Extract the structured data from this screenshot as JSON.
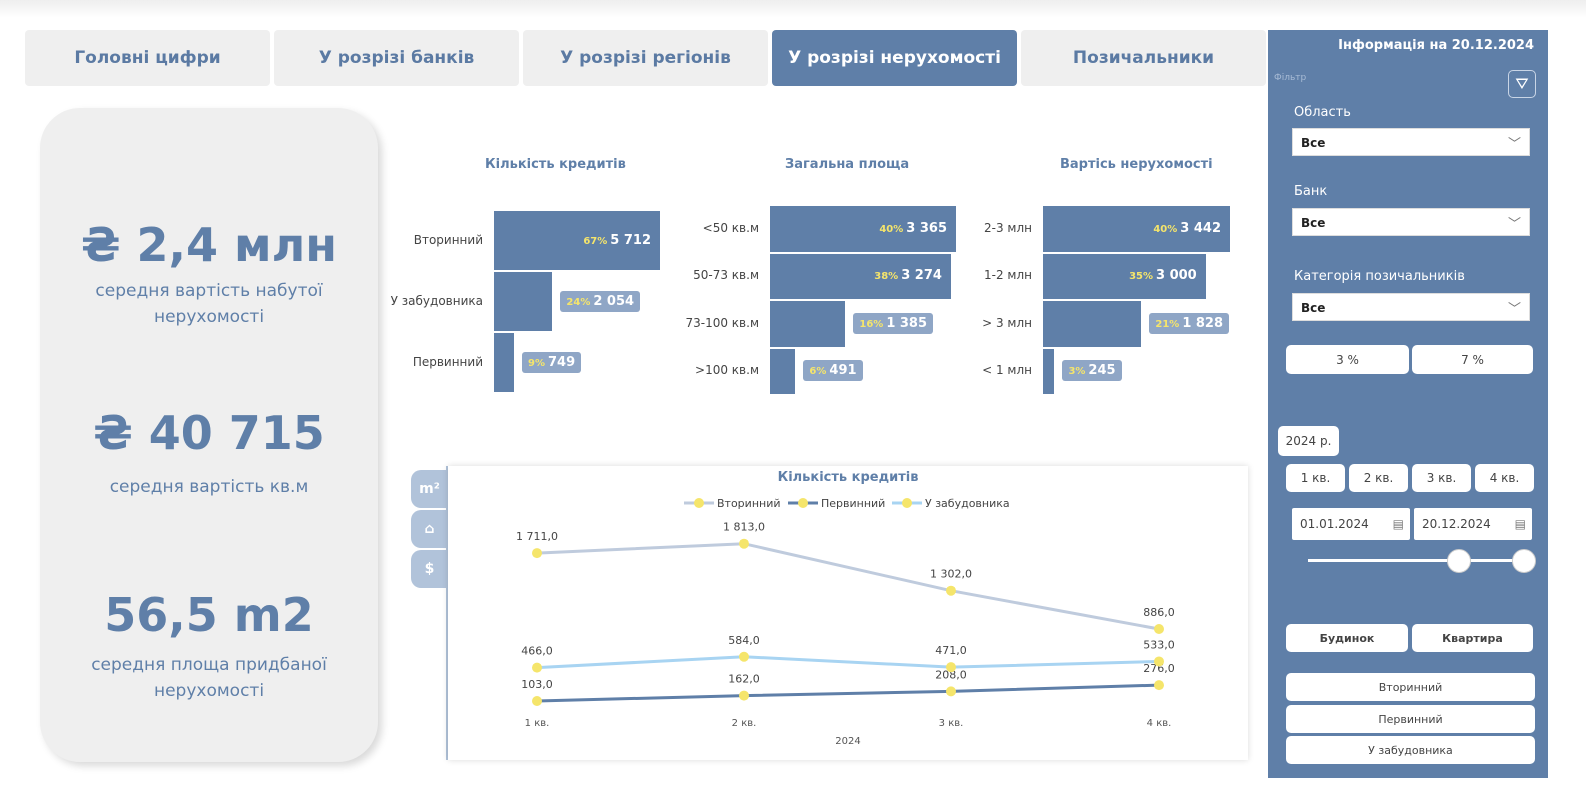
{
  "tabs": [
    {
      "label": "Головні цифри"
    },
    {
      "label": "У розрізі банків"
    },
    {
      "label": "У розрізі регіонів"
    },
    {
      "label": "У розрізі нерухомості",
      "active": true
    },
    {
      "label": "Позичальники"
    }
  ],
  "kpis": [
    {
      "value": "₴ 2,4 млн",
      "label": "середня вартість набутої нерухомості"
    },
    {
      "value": "₴ 40 715",
      "label": "середня вартість кв.м"
    },
    {
      "value": "56,5 m2",
      "label": "середня площа придбаної нерухомості"
    }
  ],
  "funnels": [
    {
      "title": "Кількість кредитів",
      "items": [
        {
          "label": "Вторинний",
          "pct": "67%",
          "value": 5712,
          "text": "5 712"
        },
        {
          "label": "У забудовника",
          "pct": "24%",
          "value": 2054,
          "text": "2 054"
        },
        {
          "label": "Первинний",
          "pct": "9%",
          "value": 749,
          "text": "749"
        }
      ]
    },
    {
      "title": "Загальна площа",
      "items": [
        {
          "label": "<50 кв.м",
          "pct": "40%",
          "value": 3365,
          "text": "3 365"
        },
        {
          "label": "50-73 кв.м",
          "pct": "38%",
          "value": 3274,
          "text": "3 274"
        },
        {
          "label": "73-100 кв.м",
          "pct": "16%",
          "value": 1385,
          "text": "1 385"
        },
        {
          "label": ">100 кв.м",
          "pct": "6%",
          "value": 491,
          "text": "491"
        }
      ]
    },
    {
      "title": "Вартісь нерухомості",
      "items": [
        {
          "label": "2-3 млн",
          "pct": "40%",
          "value": 3442,
          "text": "3 442"
        },
        {
          "label": "1-2 млн",
          "pct": "35%",
          "value": 3000,
          "text": "3 000"
        },
        {
          "label": "> 3 млн",
          "pct": "21%",
          "value": 1828,
          "text": "1 828"
        },
        {
          "label": "< 1 млн",
          "pct": "3%",
          "value": 245,
          "text": "245"
        }
      ]
    }
  ],
  "chart_data": {
    "type": "line",
    "title": "Кількість кредитів",
    "categories": [
      "1 кв.",
      "2 кв.",
      "3 кв.",
      "4 кв."
    ],
    "xlabel": "2024",
    "ylim": [
      0,
      1900
    ],
    "series": [
      {
        "name": "Вторинний",
        "color": "#bfcbdd",
        "values": [
          1711,
          1813,
          1302,
          886
        ],
        "labels": [
          "1 711,0",
          "1 813,0",
          "1 302,0",
          "886,0"
        ]
      },
      {
        "name": "Первинний",
        "color": "#5f7fa8",
        "values": [
          103,
          162,
          208,
          276
        ],
        "labels": [
          "103,0",
          "162,0",
          "208,0",
          "276,0"
        ]
      },
      {
        "name": "У забудовника",
        "color": "#a8d4f2",
        "values": [
          466,
          584,
          471,
          533
        ],
        "labels": [
          "466,0",
          "584,0",
          "471,0",
          "533,0"
        ]
      }
    ]
  },
  "side_tabs": [
    "m²",
    "⌂",
    "$"
  ],
  "sidebar": {
    "info": "Інформація на 20.12.2024",
    "filter_label": "Фільтр",
    "region_label": "Область",
    "region_value": "Все",
    "bank_label": "Банк",
    "bank_value": "Все",
    "cat_label": "Категорія позичальників",
    "cat_value": "Все",
    "rate_min": "3 %",
    "rate_max": "7 %",
    "year": "2024 р.",
    "quarters": [
      "1 кв.",
      "2 кв.",
      "3 кв.",
      "4 кв."
    ],
    "date_from": "01.01.2024",
    "date_to": "20.12.2024",
    "slider_start": 0.7,
    "slider_end": 1.0,
    "type_buttons": [
      "Будинок",
      "Квартира"
    ],
    "market_buttons": [
      "Вторинний",
      "Первинний",
      "У забудовника"
    ]
  }
}
